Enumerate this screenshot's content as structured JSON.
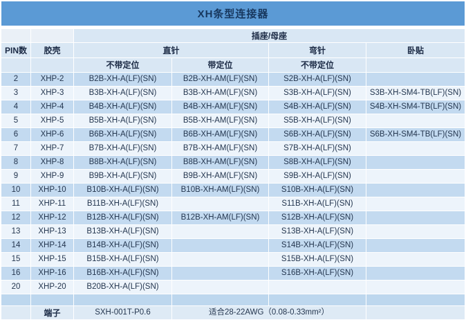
{
  "title": "XH条型连接器",
  "colors": {
    "title_bar": "#5b9ad5",
    "title_text": "#17375e",
    "header_cell": "#d9e7f4",
    "stripe_blue": "#c3daf0",
    "stripe_light": "#edf4fb",
    "spacer_row": "#bdd7ee",
    "footer_row": "#deeaf5",
    "data_text": "#24364f"
  },
  "header": {
    "socket_group": "插座/母座",
    "pin": "PIN数",
    "shell": "胶壳",
    "straight": "直针",
    "bent": "弯针",
    "smd": "卧贴",
    "straight_no_boss": "不带定位",
    "straight_boss": "带定位",
    "bent_no_boss": "不带定位"
  },
  "rows": [
    {
      "pin": "2",
      "shell": "XHP-2",
      "straight_no_boss": "B2B-XH-A(LF)(SN)",
      "straight_boss": "B2B-XH-AM(LF)(SN)",
      "bent": "S2B-XH-A(LF)(SN)",
      "smd": ""
    },
    {
      "pin": "3",
      "shell": "XHP-3",
      "straight_no_boss": "B3B-XH-A(LF)(SN)",
      "straight_boss": "B3B-XH-AM(LF)(SN)",
      "bent": "S3B-XH-A(LF)(SN)",
      "smd": "S3B-XH-SM4-TB(LF)(SN)"
    },
    {
      "pin": "4",
      "shell": "XHP-4",
      "straight_no_boss": "B4B-XH-A(LF)(SN)",
      "straight_boss": "B4B-XH-AM(LF)(SN)",
      "bent": "S4B-XH-A(LF)(SN)",
      "smd": "S4B-XH-SM4-TB(LF)(SN)"
    },
    {
      "pin": "5",
      "shell": "XHP-5",
      "straight_no_boss": "B5B-XH-A(LF)(SN)",
      "straight_boss": "B5B-XH-AM(LF)(SN)",
      "bent": "S5B-XH-A(LF)(SN)",
      "smd": ""
    },
    {
      "pin": "6",
      "shell": "XHP-6",
      "straight_no_boss": "B6B-XH-A(LF)(SN)",
      "straight_boss": "B6B-XH-AM(LF)(SN)",
      "bent": "S6B-XH-A(LF)(SN)",
      "smd": "S6B-XH-SM4-TB(LF)(SN)"
    },
    {
      "pin": "7",
      "shell": "XHP-7",
      "straight_no_boss": "B7B-XH-A(LF)(SN)",
      "straight_boss": "B7B-XH-AM(LF)(SN)",
      "bent": "S7B-XH-A(LF)(SN)",
      "smd": ""
    },
    {
      "pin": "8",
      "shell": "XHP-8",
      "straight_no_boss": "B8B-XH-A(LF)(SN)",
      "straight_boss": "B8B-XH-AM(LF)(SN)",
      "bent": "S8B-XH-A(LF)(SN)",
      "smd": ""
    },
    {
      "pin": "9",
      "shell": "XHP-9",
      "straight_no_boss": "B9B-XH-A(LF)(SN)",
      "straight_boss": "B9B-XH-AM(LF)(SN)",
      "bent": "S9B-XH-A(LF)(SN)",
      "smd": ""
    },
    {
      "pin": "10",
      "shell": "XHP-10",
      "straight_no_boss": "B10B-XH-A(LF)(SN)",
      "straight_boss": "B10B-XH-AM(LF)(SN)",
      "bent": "S10B-XH-A(LF)(SN)",
      "smd": ""
    },
    {
      "pin": "11",
      "shell": "XHP-11",
      "straight_no_boss": "B11B-XH-A(LF)(SN)",
      "straight_boss": "",
      "bent": "S11B-XH-A(LF)(SN)",
      "smd": ""
    },
    {
      "pin": "12",
      "shell": "XHP-12",
      "straight_no_boss": "B12B-XH-A(LF)(SN)",
      "straight_boss": "B12B-XH-AM(LF)(SN)",
      "bent": "S12B-XH-A(LF)(SN)",
      "smd": ""
    },
    {
      "pin": "13",
      "shell": "XHP-13",
      "straight_no_boss": "B13B-XH-A(LF)(SN)",
      "straight_boss": "",
      "bent": "S13B-XH-A(LF)(SN)",
      "smd": ""
    },
    {
      "pin": "14",
      "shell": "XHP-14",
      "straight_no_boss": "B14B-XH-A(LF)(SN)",
      "straight_boss": "",
      "bent": "S14B-XH-A(LF)(SN)",
      "smd": ""
    },
    {
      "pin": "15",
      "shell": "XHP-15",
      "straight_no_boss": "B15B-XH-A(LF)(SN)",
      "straight_boss": "",
      "bent": "S15B-XH-A(LF)(SN)",
      "smd": ""
    },
    {
      "pin": "16",
      "shell": "XHP-16",
      "straight_no_boss": "B16B-XH-A(LF)(SN)",
      "straight_boss": "",
      "bent": "S16B-XH-A(LF)(SN)",
      "smd": ""
    },
    {
      "pin": "20",
      "shell": "XHP-20",
      "straight_no_boss": "B20B-XH-A(LF)(SN)",
      "straight_boss": "",
      "bent": "",
      "smd": ""
    }
  ],
  "footer": {
    "terminal_label": "端子",
    "terminal_part": "SXH-001T-P0.6",
    "wire_range": "适合28-22AWG（0.08-0.33mm²）"
  }
}
